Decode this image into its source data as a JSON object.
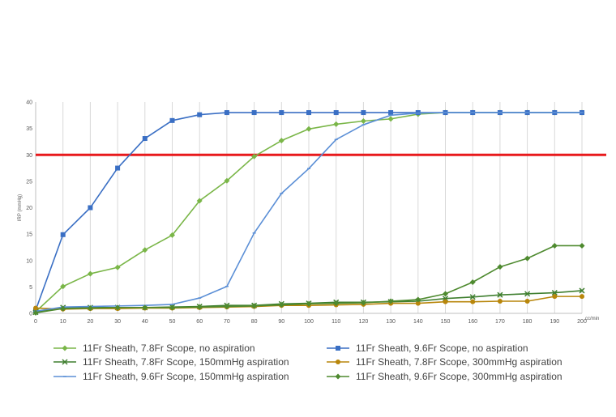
{
  "chart_data": {
    "type": "line",
    "xlabel": "cc/min",
    "ylabel": "IRP (mmHg)",
    "xlim": [
      0,
      200
    ],
    "ylim": [
      0,
      40
    ],
    "x": [
      0,
      10,
      20,
      30,
      40,
      50,
      60,
      70,
      80,
      90,
      100,
      110,
      120,
      130,
      140,
      150,
      160,
      170,
      180,
      190,
      200
    ],
    "x_tick_labels": [
      "0",
      "10",
      "20",
      "30",
      "40",
      "50",
      "60",
      "70",
      "80",
      "90",
      "100",
      "110",
      "120",
      "130",
      "140",
      "150",
      "160",
      "170",
      "180",
      "190",
      "200"
    ],
    "y_ticks": [
      0,
      5,
      10,
      15,
      20,
      25,
      30,
      35,
      40
    ],
    "grid": "vertical",
    "legend_position": "bottom",
    "threshold": {
      "value": 30,
      "color": "#e8191c"
    },
    "series": [
      {
        "name": "11Fr Sheath, 7.8Fr Scope, no aspiration",
        "color": "#7ab648",
        "marker": "diamond",
        "points": [
          [
            0,
            0.3
          ],
          [
            10,
            5.1
          ],
          [
            20,
            7.5
          ],
          [
            30,
            8.7
          ],
          [
            40,
            12
          ],
          [
            50,
            14.8
          ],
          [
            60,
            21.3
          ],
          [
            70,
            25.1
          ],
          [
            80,
            29.7
          ],
          [
            90,
            32.7
          ],
          [
            100,
            34.9
          ],
          [
            110,
            35.8
          ],
          [
            120,
            36.4
          ],
          [
            130,
            36.8
          ],
          [
            140,
            37.7
          ],
          [
            150,
            38
          ],
          [
            160,
            38
          ],
          [
            170,
            38
          ],
          [
            180,
            38
          ],
          [
            190,
            38
          ],
          [
            200,
            38
          ]
        ]
      },
      {
        "name": "11Fr Sheath, 9.6Fr Scope, no aspiration",
        "color": "#3a6fc4",
        "marker": "square",
        "points": [
          [
            0,
            0.6
          ],
          [
            10,
            14.9
          ],
          [
            20,
            20
          ],
          [
            30,
            27.5
          ],
          [
            40,
            33.1
          ],
          [
            50,
            36.5
          ],
          [
            60,
            37.6
          ],
          [
            70,
            38
          ],
          [
            80,
            38
          ],
          [
            90,
            38
          ],
          [
            100,
            38
          ],
          [
            110,
            38
          ],
          [
            120,
            38
          ],
          [
            130,
            38
          ],
          [
            140,
            38
          ],
          [
            150,
            38
          ],
          [
            160,
            38
          ],
          [
            170,
            38
          ],
          [
            180,
            38
          ],
          [
            190,
            38
          ],
          [
            200,
            38
          ]
        ]
      },
      {
        "name": "11Fr Sheath, 7.8Fr Scope, 150mmHg aspiration",
        "color": "#3f7f2f",
        "marker": "x",
        "points": [
          [
            0,
            0.2
          ],
          [
            10,
            1.1
          ],
          [
            20,
            1.1
          ],
          [
            30,
            1.1
          ],
          [
            40,
            1.1
          ],
          [
            50,
            1.2
          ],
          [
            60,
            1.3
          ],
          [
            70,
            1.5
          ],
          [
            80,
            1.5
          ],
          [
            90,
            1.8
          ],
          [
            100,
            1.9
          ],
          [
            110,
            2.1
          ],
          [
            120,
            2.1
          ],
          [
            130,
            2.2
          ],
          [
            140,
            2.3
          ],
          [
            150,
            2.8
          ],
          [
            160,
            3.1
          ],
          [
            170,
            3.5
          ],
          [
            180,
            3.7
          ],
          [
            190,
            3.9
          ],
          [
            200,
            4.3
          ]
        ]
      },
      {
        "name": "11Fr Sheath, 7.8Fr Scope, 300mmHg aspiration",
        "color": "#b8860b",
        "marker": "circle",
        "points": [
          [
            0,
            1
          ],
          [
            10,
            0.8
          ],
          [
            20,
            0.9
          ],
          [
            30,
            0.9
          ],
          [
            40,
            1
          ],
          [
            50,
            1
          ],
          [
            60,
            1.1
          ],
          [
            70,
            1.2
          ],
          [
            80,
            1.3
          ],
          [
            90,
            1.5
          ],
          [
            100,
            1.5
          ],
          [
            110,
            1.6
          ],
          [
            120,
            1.7
          ],
          [
            130,
            1.9
          ],
          [
            140,
            1.9
          ],
          [
            150,
            2.2
          ],
          [
            160,
            2.2
          ],
          [
            170,
            2.3
          ],
          [
            180,
            2.3
          ],
          [
            190,
            3.2
          ],
          [
            200,
            3.2
          ]
        ]
      },
      {
        "name": "11Fr Sheath, 9.6Fr Scope, 150mmHg aspiration",
        "color": "#5b8fd6",
        "marker": "dash",
        "points": [
          [
            0,
            0.4
          ],
          [
            10,
            1.2
          ],
          [
            20,
            1.3
          ],
          [
            30,
            1.4
          ],
          [
            40,
            1.5
          ],
          [
            50,
            1.7
          ],
          [
            60,
            2.9
          ],
          [
            70,
            5.1
          ],
          [
            80,
            15.2
          ],
          [
            90,
            22.7
          ],
          [
            100,
            27.4
          ],
          [
            110,
            32.9
          ],
          [
            120,
            35.7
          ],
          [
            130,
            37.5
          ],
          [
            140,
            37.9
          ],
          [
            150,
            38
          ],
          [
            160,
            38
          ],
          [
            170,
            38
          ],
          [
            180,
            38
          ],
          [
            190,
            38
          ],
          [
            200,
            38
          ]
        ]
      },
      {
        "name": "11Fr Sheath, 9.6Fr Scope, 300mmHg aspiration",
        "color": "#4e8a2f",
        "marker": "diamond",
        "points": [
          [
            0,
            0.1
          ],
          [
            10,
            0.9
          ],
          [
            20,
            1
          ],
          [
            30,
            1.1
          ],
          [
            40,
            1.1
          ],
          [
            50,
            1.1
          ],
          [
            60,
            1.2
          ],
          [
            70,
            1.3
          ],
          [
            80,
            1.4
          ],
          [
            90,
            1.6
          ],
          [
            100,
            1.8
          ],
          [
            110,
            1.9
          ],
          [
            120,
            2
          ],
          [
            130,
            2.3
          ],
          [
            140,
            2.6
          ],
          [
            150,
            3.7
          ],
          [
            160,
            5.9
          ],
          [
            170,
            8.8
          ],
          [
            180,
            10.4
          ],
          [
            190,
            12.8
          ],
          [
            200,
            12.8
          ]
        ]
      }
    ]
  },
  "legend": [
    {
      "label": "11Fr Sheath, 7.8Fr Scope, no aspiration"
    },
    {
      "label": "11Fr Sheath, 9.6Fr Scope, no aspiration"
    },
    {
      "label": "11Fr Sheath, 7.8Fr Scope, 150mmHg aspiration"
    },
    {
      "label": "11Fr Sheath, 7.8Fr Scope, 300mmHg aspiration"
    },
    {
      "label": "11Fr Sheath, 9.6Fr Scope, 150mmHg aspiration"
    },
    {
      "label": "11Fr Sheath, 9.6Fr Scope, 300mmHg aspiration"
    }
  ]
}
